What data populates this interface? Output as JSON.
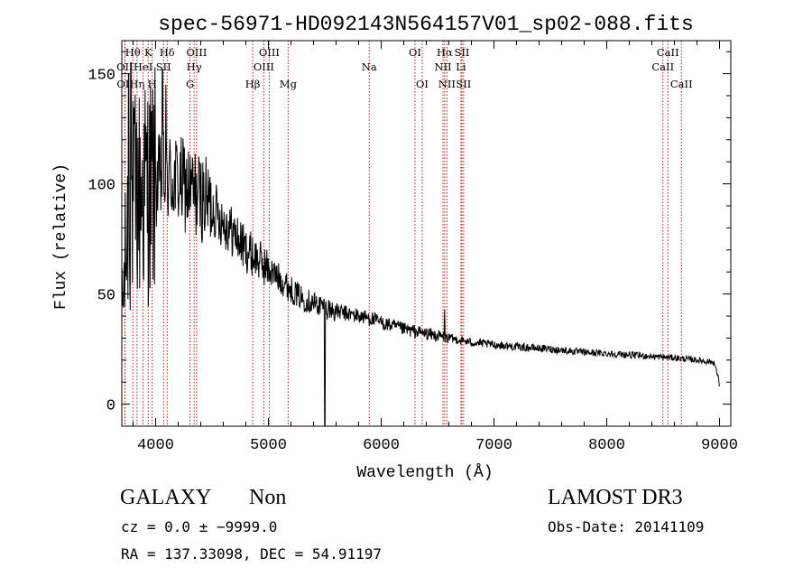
{
  "chart_data": {
    "type": "line",
    "title": "spec-56971-HD092143N564157V01_sp02-088.fits",
    "xlabel": "Wavelength (Å)",
    "ylabel": "Flux (relative)",
    "xlim": [
      3700,
      9100
    ],
    "ylim": [
      -10,
      165
    ],
    "xticks": [
      4000,
      5000,
      6000,
      7000,
      8000,
      9000
    ],
    "yticks": [
      0,
      50,
      100,
      150
    ],
    "xtick_labels": [
      "4000",
      "5000",
      "6000",
      "7000",
      "8000",
      "9000"
    ],
    "ytick_labels": [
      "0",
      "50",
      "100",
      "150"
    ],
    "lines": [
      {
        "label": "OII",
        "wave": 3727,
        "row": 2
      },
      {
        "label": "OII",
        "wave": 3729,
        "row": 3
      },
      {
        "label": "Hθ",
        "wave": 3798,
        "row": 1
      },
      {
        "label": "Hη",
        "wave": 3835,
        "row": 3
      },
      {
        "label": "HeI",
        "wave": 3889,
        "row": 2
      },
      {
        "label": "K",
        "wave": 3934,
        "row": 1
      },
      {
        "label": "H",
        "wave": 3969,
        "row": 3
      },
      {
        "label": "SII",
        "wave": 4070,
        "row": 2
      },
      {
        "label": "Hδ",
        "wave": 4102,
        "row": 1
      },
      {
        "label": "G",
        "wave": 4305,
        "row": 3
      },
      {
        "label": "Hγ",
        "wave": 4341,
        "row": 2
      },
      {
        "label": "OIII",
        "wave": 4363,
        "row": 1
      },
      {
        "label": "Hβ",
        "wave": 4861,
        "row": 3
      },
      {
        "label": "OIII",
        "wave": 4959,
        "row": 2
      },
      {
        "label": "OIII",
        "wave": 5007,
        "row": 1
      },
      {
        "label": "Mg",
        "wave": 5175,
        "row": 3
      },
      {
        "label": "Na",
        "wave": 5894,
        "row": 2
      },
      {
        "label": "OI",
        "wave": 6300,
        "row": 1
      },
      {
        "label": "OI",
        "wave": 6364,
        "row": 3
      },
      {
        "label": "NII",
        "wave": 6548,
        "row": 2
      },
      {
        "label": "Hα",
        "wave": 6563,
        "row": 1
      },
      {
        "label": "NII",
        "wave": 6583,
        "row": 3
      },
      {
        "label": "Li",
        "wave": 6707,
        "row": 2
      },
      {
        "label": "SII",
        "wave": 6716,
        "row": 1
      },
      {
        "label": "SII",
        "wave": 6731,
        "row": 3
      },
      {
        "label": "CaII",
        "wave": 8498,
        "row": 2
      },
      {
        "label": "CaII",
        "wave": 8542,
        "row": 1
      },
      {
        "label": "CaII",
        "wave": 8662,
        "row": 3
      }
    ],
    "continuum": [
      [
        3700,
        40
      ],
      [
        3750,
        78
      ],
      [
        3800,
        92
      ],
      [
        3850,
        95
      ],
      [
        3900,
        98
      ],
      [
        3950,
        98
      ],
      [
        4000,
        100
      ],
      [
        4100,
        103
      ],
      [
        4200,
        101
      ],
      [
        4300,
        97
      ],
      [
        4400,
        94
      ],
      [
        4500,
        90
      ],
      [
        4600,
        83
      ],
      [
        4700,
        77
      ],
      [
        4800,
        70
      ],
      [
        4900,
        66
      ],
      [
        5000,
        61
      ],
      [
        5100,
        57
      ],
      [
        5200,
        52
      ],
      [
        5300,
        48
      ],
      [
        5400,
        46
      ],
      [
        5500,
        44
      ],
      [
        5600,
        42
      ],
      [
        5700,
        41
      ],
      [
        5800,
        40
      ],
      [
        5900,
        39
      ],
      [
        6000,
        37
      ],
      [
        6200,
        34
      ],
      [
        6400,
        32
      ],
      [
        6600,
        30
      ],
      [
        6800,
        28
      ],
      [
        7000,
        27
      ],
      [
        7200,
        26
      ],
      [
        7500,
        25
      ],
      [
        7800,
        23.5
      ],
      [
        8000,
        23
      ],
      [
        8300,
        22
      ],
      [
        8600,
        21
      ],
      [
        8800,
        20
      ],
      [
        8950,
        19
      ],
      [
        9000,
        10
      ]
    ],
    "features": [
      {
        "wave": 3760,
        "flux": 150
      },
      {
        "wave": 3780,
        "flux": 155
      },
      {
        "wave": 4060,
        "flux": 152
      },
      {
        "wave": 4090,
        "flux": 145
      },
      {
        "wave": 5500,
        "flux": -10
      },
      {
        "wave": 6563,
        "flux": 43
      }
    ]
  },
  "footer": {
    "object_class": "GALAXY",
    "subclass": "Non",
    "cz": "cz = 0.0 ± −9999.0",
    "coords": "RA = 137.33098, DEC =  54.91197",
    "survey": "LAMOST DR3",
    "obs_date": "Obs-Date: 20141109"
  },
  "colors": {
    "spectrum": "#000000",
    "line_marker": "#b00000",
    "axes": "#000000"
  }
}
